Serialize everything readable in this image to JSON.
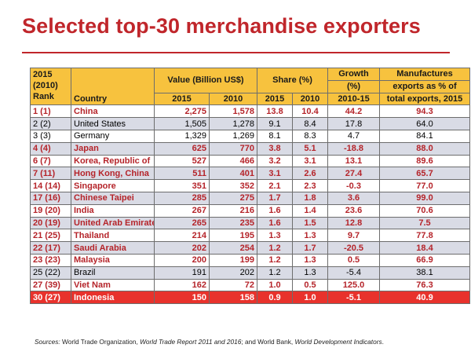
{
  "title": "Selected top-30 merchandise exporters",
  "header": {
    "rank_line1": "2015",
    "rank_line2": "(2010)",
    "rank_line3": "Rank",
    "country": "Country",
    "value_group": "Value (Billion US$)",
    "share_group": "Share (%)",
    "growth_line1": "Growth",
    "growth_line2": "(%)",
    "growth_line3": "2010-15",
    "manuf_line1": "Manufactures",
    "manuf_line2": "exports as % of",
    "manuf_line3": "total exports, 2015",
    "year_2015": "2015",
    "year_2010": "2010"
  },
  "rows": [
    {
      "rank": "1 (1)",
      "country": "China",
      "v2015": "2,275",
      "v2010": "1,578",
      "s2015": "13.8",
      "s2010": "10.4",
      "growth": "44.2",
      "manuf": "94.3",
      "hl": true
    },
    {
      "rank": "2 (2)",
      "country": "United States",
      "v2015": "1,505",
      "v2010": "1,278",
      "s2015": "9.1",
      "s2010": "8.4",
      "growth": "17.8",
      "manuf": "64.0",
      "hl": false
    },
    {
      "rank": "3 (3)",
      "country": "Germany",
      "v2015": "1,329",
      "v2010": "1,269",
      "s2015": "8.1",
      "s2010": "8.3",
      "growth": "4.7",
      "manuf": "84.1",
      "hl": false
    },
    {
      "rank": "4 (4)",
      "country": "Japan",
      "v2015": "625",
      "v2010": "770",
      "s2015": "3.8",
      "s2010": "5.1",
      "growth": "-18.8",
      "manuf": "88.0",
      "hl": true
    },
    {
      "rank": "6 (7)",
      "country": "Korea, Republic of",
      "v2015": "527",
      "v2010": "466",
      "s2015": "3.2",
      "s2010": "3.1",
      "growth": "13.1",
      "manuf": "89.6",
      "hl": true
    },
    {
      "rank": "7 (11)",
      "country": "Hong Kong, China",
      "v2015": "511",
      "v2010": "401",
      "s2015": "3.1",
      "s2010": "2.6",
      "growth": "27.4",
      "manuf": "65.7",
      "hl": true
    },
    {
      "rank": "14 (14)",
      "country": "Singapore",
      "v2015": "351",
      "v2010": "352",
      "s2015": "2.1",
      "s2010": "2.3",
      "growth": "-0.3",
      "manuf": "77.0",
      "hl": true
    },
    {
      "rank": "17 (16)",
      "country": "Chinese Taipei",
      "v2015": "285",
      "v2010": "275",
      "s2015": "1.7",
      "s2010": "1.8",
      "growth": "3.6",
      "manuf": "99.0",
      "hl": true
    },
    {
      "rank": "19 (20)",
      "country": "India",
      "v2015": "267",
      "v2010": "216",
      "s2015": "1.6",
      "s2010": "1.4",
      "growth": "23.6",
      "manuf": "70.6",
      "hl": true
    },
    {
      "rank": "20 (19)",
      "country": "United Arab Emirates",
      "v2015": "265",
      "v2010": "235",
      "s2015": "1.6",
      "s2010": "1.5",
      "growth": "12.8",
      "manuf": "7.5",
      "hl": true,
      "small": true
    },
    {
      "rank": "21 (25)",
      "country": "Thailand",
      "v2015": "214",
      "v2010": "195",
      "s2015": "1.3",
      "s2010": "1.3",
      "growth": "9.7",
      "manuf": "77.8",
      "hl": true
    },
    {
      "rank": "22 (17)",
      "country": "Saudi Arabia",
      "v2015": "202",
      "v2010": "254",
      "s2015": "1.2",
      "s2010": "1.7",
      "growth": "-20.5",
      "manuf": "18.4",
      "hl": true
    },
    {
      "rank": "23 (23)",
      "country": "Malaysia",
      "v2015": "200",
      "v2010": "199",
      "s2015": "1.2",
      "s2010": "1.3",
      "growth": "0.5",
      "manuf": "66.9",
      "hl": true
    },
    {
      "rank": "25 (22)",
      "country": "Brazil",
      "v2015": "191",
      "v2010": "202",
      "s2015": "1.2",
      "s2010": "1.3",
      "growth": "-5.4",
      "manuf": "38.1",
      "hl": false
    },
    {
      "rank": "27 (39)",
      "country": "Viet Nam",
      "v2015": "162",
      "v2010": "72",
      "s2015": "1.0",
      "s2010": "0.5",
      "growth": "125.0",
      "manuf": "76.3",
      "hl": true
    },
    {
      "rank": "30 (27)",
      "country": "Indonesia",
      "v2015": "150",
      "v2010": "158",
      "s2015": "0.9",
      "s2010": "1.0",
      "growth": "-5.1",
      "manuf": "40.9",
      "hl": true,
      "last": true
    }
  ],
  "source": {
    "label": "Sources:",
    "text1": " World Trade Organization, ",
    "report": "World Trade Report 2011 and 2016",
    "text2": "; and World Bank, ",
    "wdi": "World Development Indicators",
    "text3": "."
  },
  "colors": {
    "title": "#c0262b",
    "header_bg": "#f7c23e",
    "highlight_text": "#b5242a",
    "band_row": "#d9dbe5",
    "last_row_bg": "#e8322c"
  }
}
